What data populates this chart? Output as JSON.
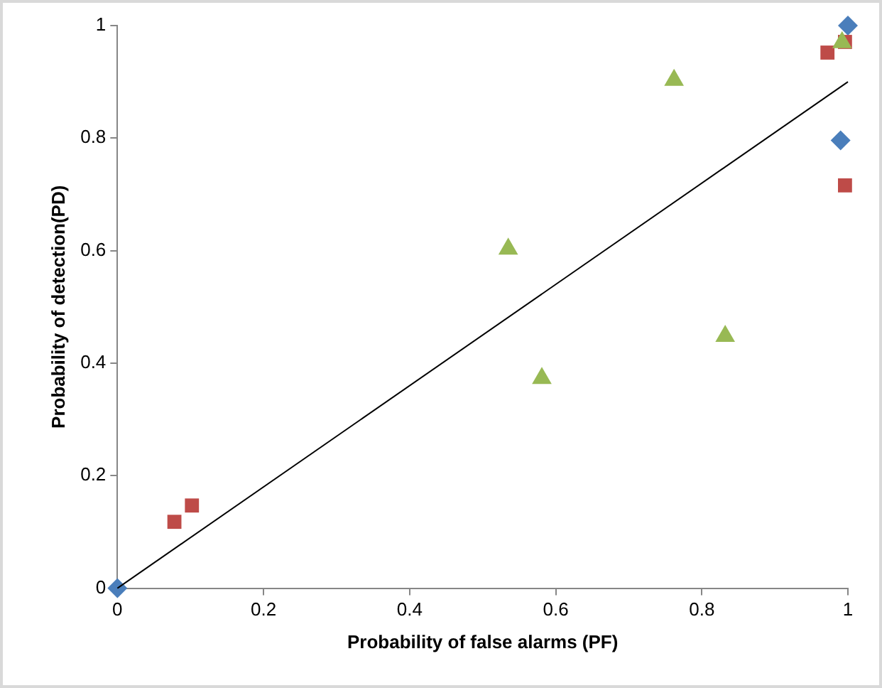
{
  "chart_data": {
    "type": "scatter",
    "xlabel": "Probability of false alarms (PF)",
    "ylabel": "Probability of detection(PD)",
    "xlim": [
      0,
      1
    ],
    "ylim": [
      0,
      1
    ],
    "xticks": [
      0,
      0.2,
      0.4,
      0.6,
      0.8,
      1
    ],
    "yticks": [
      0,
      0.2,
      0.4,
      0.6,
      0.8,
      1
    ],
    "grid": false,
    "legend": false,
    "series": [
      {
        "type": "scatter",
        "marker": "diamond",
        "color": "#4a7ebb",
        "x": [
          0,
          0.99,
          1
        ],
        "values": [
          0,
          0.796,
          1
        ]
      },
      {
        "type": "scatter",
        "marker": "square",
        "color": "#be4b48",
        "x": [
          0.078,
          0.102,
          0.972,
          0.996,
          0.996
        ],
        "values": [
          0.118,
          0.147,
          0.952,
          0.971,
          0.716
        ]
      },
      {
        "type": "scatter",
        "marker": "triangle",
        "color": "#98b954",
        "x": [
          0.535,
          0.581,
          0.762,
          0.832,
          0.992
        ],
        "values": [
          0.603,
          0.373,
          0.903,
          0.448,
          0.97
        ]
      },
      {
        "type": "line",
        "marker": "none",
        "color": "#000000",
        "x": [
          0,
          1
        ],
        "values": [
          0,
          0.9
        ]
      }
    ]
  }
}
